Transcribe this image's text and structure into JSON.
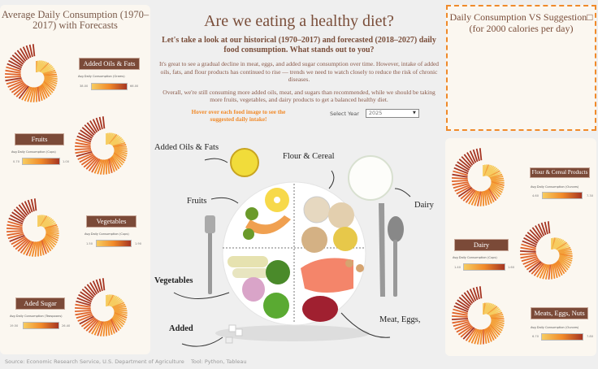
{
  "left_panel": {
    "title": "Average Daily Consumption (1970–2017) with Forecasts",
    "charts": [
      {
        "label": "Added Oils & Fats",
        "legend_caption": "Avg Daily Consumption (Grams)",
        "min": "38.00",
        "max": "66.00"
      },
      {
        "label": "Fruits",
        "legend_caption": "Avg Daily Consumption (Cups)",
        "min": "0.70",
        "max": "1.00"
      },
      {
        "label": "Vegetables",
        "legend_caption": "Avg Daily Consumption (Cups)",
        "min": "1.50",
        "max": "1.90"
      },
      {
        "label": "Aded Sugar",
        "legend_caption": "Avg Daily Consumption (Teaspoons)",
        "min": "19.50",
        "max": "26.40"
      }
    ]
  },
  "right_top": {
    "title": "Daily Consumption VS Suggestion□",
    "subtitle": "(for 2000 calories per day)"
  },
  "right_panel": {
    "charts": [
      {
        "label": "Flour & Cereal Products",
        "legend_caption": "Avg Daily Consumption (Ounces)",
        "min": "4.60",
        "max": "7.30"
      },
      {
        "label": "Dairy",
        "legend_caption": "Avg Daily Consumption (Cups)",
        "min": "1.40",
        "max": "1.60"
      },
      {
        "label": "Meats, Eggs, Nuts",
        "legend_caption": "Avg Daily Consumption (Ounces)",
        "min": "6.70",
        "max": "7.80"
      }
    ]
  },
  "main": {
    "title": "Are we eating a healthy diet?",
    "subtitle": "Let's take a look at our historical (1970–2017) and forecasted (2018–2027) daily food consumption. What stands out to you?",
    "para1": "It's great to see a gradual decline in meat, eggs, and added sugar consumption over time. However, intake of added oils, fats, and flour products has continued to rise — trends we need to watch closely to reduce the risk of chronic diseases.",
    "para2": "Overall, we're still consuming more added oils, meat, and sugars than recommended, while we should be taking more fruits, vegetables, and dairy products to get a balanced healthy diet.",
    "hover_hint": "Hover over each food image to see the suggested daily intake!",
    "year_label": "Select Year",
    "year_value": "2025",
    "food_labels": {
      "oils": "Added Oils & Fats",
      "flour": "Flour & Cereal",
      "fruits": "Fruits",
      "dairy": "Dairy",
      "vegetables": "Vegetables",
      "meat": "Meat, Eggs,",
      "sugar": "Added"
    }
  },
  "footer": {
    "source": "Source: Economic Research Service, U.S. Department of Agriculture",
    "tool": "Tool: Python, Tableau"
  },
  "colors": {
    "accent": "#f08a2a",
    "label_bg": "#7b4a38",
    "light": "#f6cc60",
    "dark": "#a63522"
  }
}
